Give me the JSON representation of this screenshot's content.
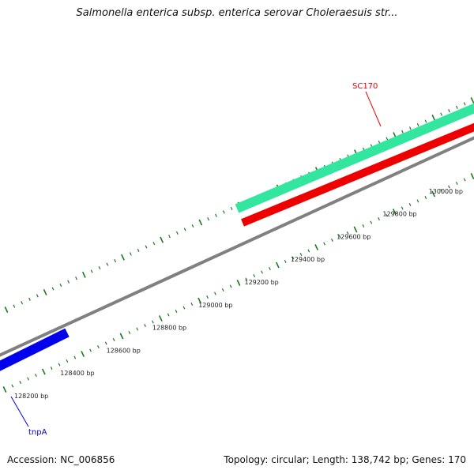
{
  "title": "Salmonella enterica subsp. enterica serovar Choleraesuis str...",
  "footer": {
    "accession": "Accession: NC_006856",
    "summary": "Topology: circular; Length: 138,742 bp; Genes: 170"
  },
  "scale_labels": [
    {
      "label": "128200 bp",
      "bp": 128200
    },
    {
      "label": "128400 bp",
      "bp": 128400
    },
    {
      "label": "128600 bp",
      "bp": 128600
    },
    {
      "label": "128800 bp",
      "bp": 128800
    },
    {
      "label": "129000 bp",
      "bp": 129000
    },
    {
      "label": "129200 bp",
      "bp": 129200
    },
    {
      "label": "129400 bp",
      "bp": 129400
    },
    {
      "label": "129600 bp",
      "bp": 129600
    },
    {
      "label": "129800 bp",
      "bp": 129800
    },
    {
      "label": "130000 bp",
      "bp": 130000
    }
  ],
  "features": [
    {
      "label": "tnpA",
      "color": "#0000ee"
    },
    {
      "label": "SC170",
      "color": "#ee0000"
    }
  ],
  "colors": {
    "backbone": "#808080",
    "tick": "#1a7a1a",
    "feature_green": "#33e6a0",
    "feature_red": "#ee0000",
    "feature_blue": "#0000ee"
  }
}
